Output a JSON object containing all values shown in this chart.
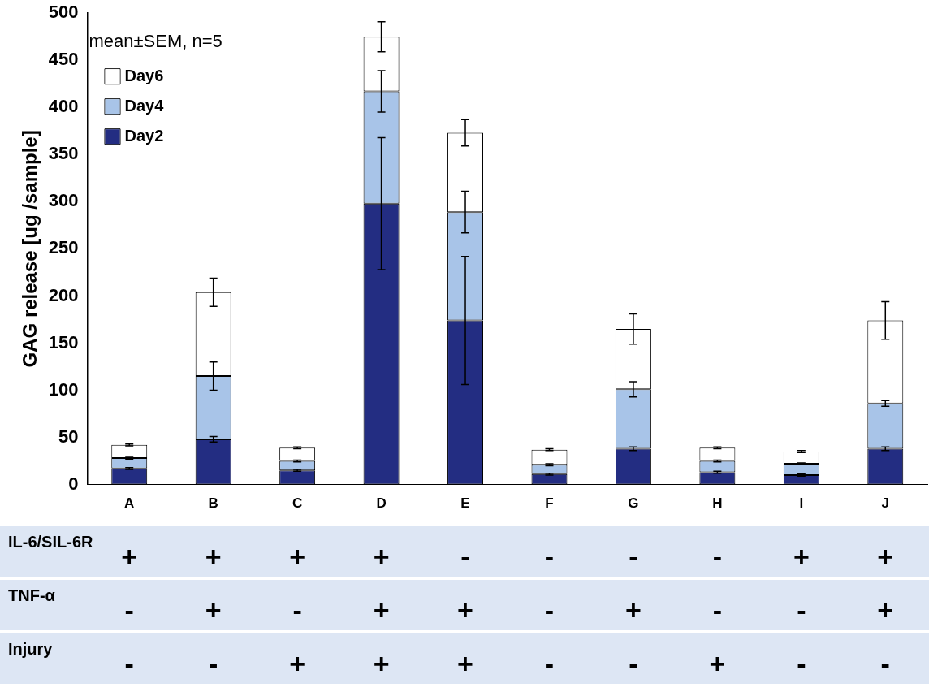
{
  "chart_data": {
    "type": "bar",
    "stacked": true,
    "ylabel": "GAG release [ug /sample]",
    "categories": [
      "A",
      "B",
      "C",
      "D",
      "E",
      "F",
      "G",
      "H",
      "I",
      "J"
    ],
    "ylim": [
      0,
      500
    ],
    "yticks": [
      0,
      50,
      100,
      150,
      200,
      250,
      300,
      350,
      400,
      450,
      500
    ],
    "grid": false,
    "legend": "top left",
    "series": [
      {
        "name": "Day2",
        "color": "#232d82",
        "values": [
          17,
          48,
          15,
          298,
          174,
          11,
          38,
          13,
          10,
          38
        ],
        "errors": [
          1,
          3,
          1,
          70,
          68,
          1,
          2,
          1,
          1,
          2
        ]
      },
      {
        "name": "Day4",
        "color": "#a8c4e8",
        "values": [
          11,
          67,
          10,
          119,
          115,
          10,
          63,
          12,
          12,
          48
        ],
        "errors": [
          1,
          15,
          1,
          22,
          22,
          1,
          8,
          1,
          1,
          3
        ]
      },
      {
        "name": "Day6",
        "color": "#ffffff",
        "values": [
          14,
          89,
          14,
          58,
          84,
          16,
          64,
          14,
          13,
          88
        ],
        "errors": [
          1,
          15,
          1,
          16,
          14,
          1,
          16,
          1,
          1,
          20
        ]
      }
    ],
    "annotations": [
      "mean±SEM, n=5",
      "IL-6/SIL-6R",
      "+",
      "+",
      "+",
      "+",
      "-",
      "-",
      "-",
      "-",
      "+",
      "+",
      "TNF-α",
      "-",
      "+",
      "-",
      "+",
      "+",
      "-",
      "+",
      "-",
      "-",
      "+",
      "Injury",
      "-",
      "-",
      "+",
      "+",
      "+",
      "-",
      "-",
      "+",
      "-",
      "-"
    ]
  }
}
